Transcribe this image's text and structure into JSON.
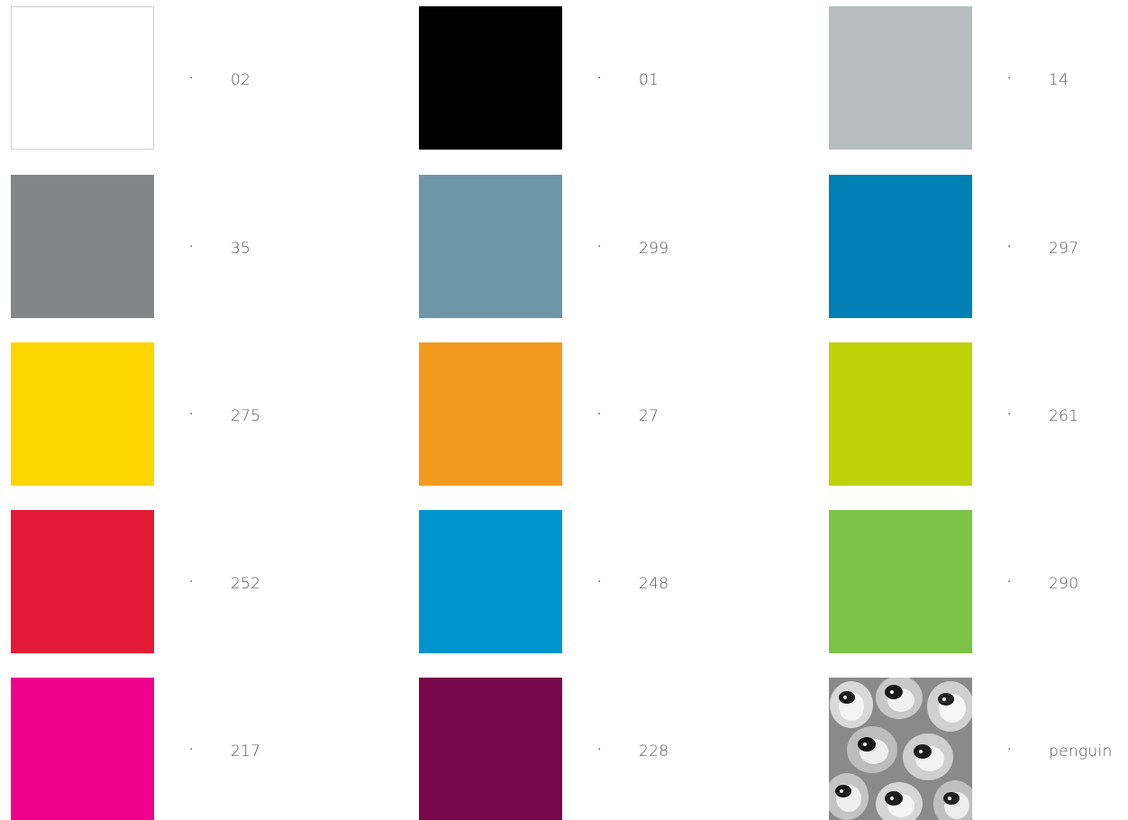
{
  "swatches": [
    {
      "label": "02",
      "color": "#ffffff",
      "bordered": true
    },
    {
      "label": "01",
      "color": "#000000"
    },
    {
      "label": "14",
      "color": "#b7bdbd"
    },
    {
      "label": "35",
      "color": "#848586"
    },
    {
      "label": "299",
      "color": "#6d97a7"
    },
    {
      "label": "297",
      "color": "#0080b4"
    },
    {
      "label": "275",
      "color": "#ffd500"
    },
    {
      "label": "27",
      "color": "#f39a1f"
    },
    {
      "label": "261",
      "color": "#bfd30a"
    },
    {
      "label": "252",
      "color": "#e31a36"
    },
    {
      "label": "248",
      "color": "#0094cf"
    },
    {
      "label": "290",
      "color": "#7cc246"
    },
    {
      "label": "217",
      "color": "#ee028c"
    },
    {
      "label": "228",
      "color": "#770748"
    },
    {
      "label": "penguin",
      "color": "#7a7a7a",
      "pattern": "penguin-pattern"
    }
  ],
  "bullet": "·"
}
